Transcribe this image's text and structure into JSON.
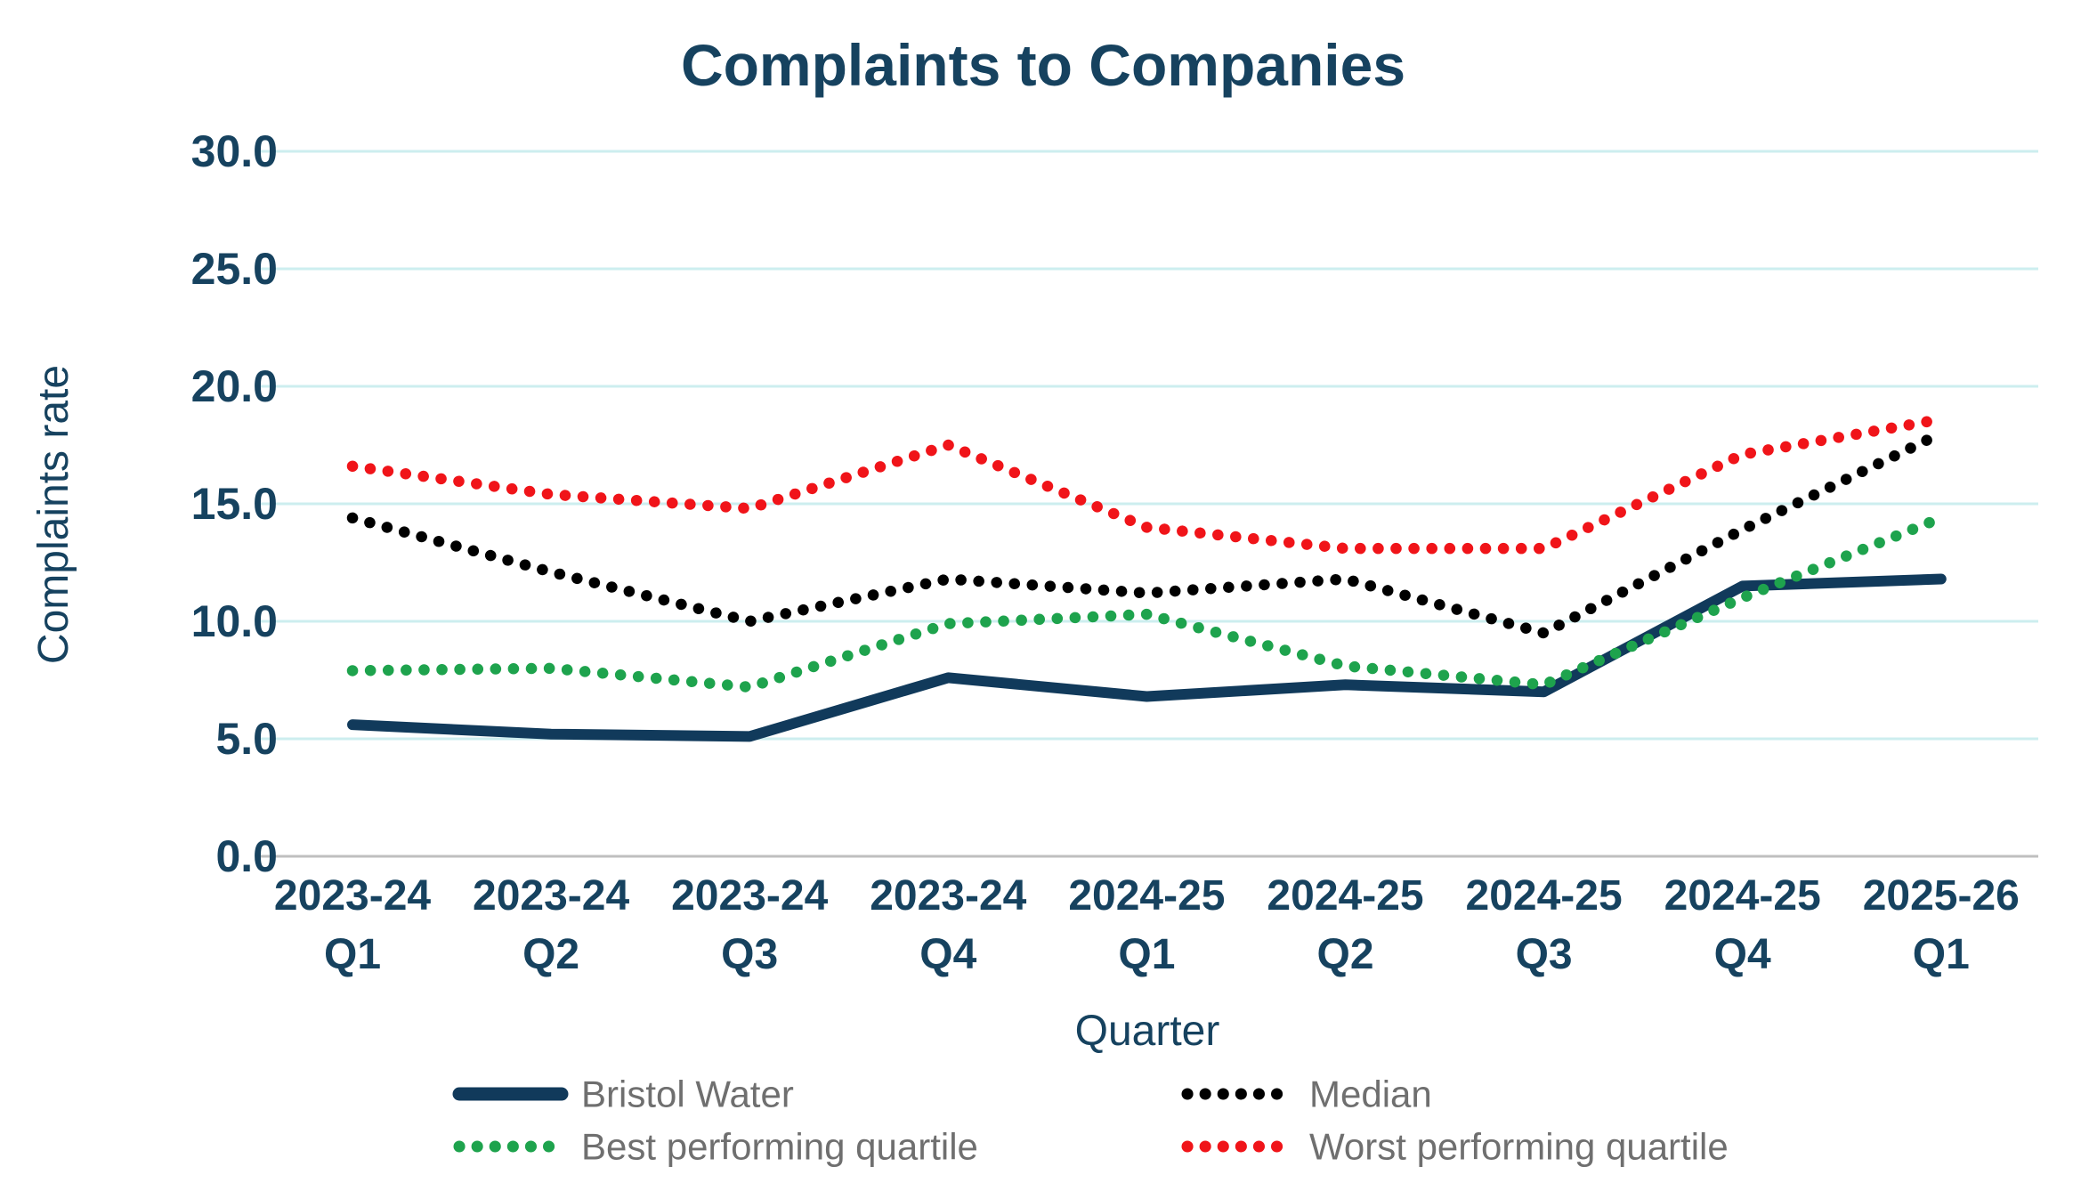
{
  "title": "Complaints to Companies",
  "colors": {
    "title_navy": "#16425F",
    "tick_navy": "#16425F",
    "line_navy": "#113A5B",
    "median_black": "#000000",
    "best_green": "#1EA34D",
    "worst_red": "#F01419",
    "gridline_cyan": "#CDEEEF",
    "zero_axis_gray": "#BFBFBF",
    "legend_text_gray": "#6F6F6F",
    "background": "#FFFFFF"
  },
  "chart_data": {
    "type": "line",
    "title": "Complaints to Companies",
    "xlabel": "Quarter",
    "ylabel": "Complaints rate",
    "ylim": [
      0,
      30
    ],
    "grid": true,
    "legend_position": "bottom",
    "ytick_labels": [
      "0.0",
      "5.0",
      "10.0",
      "15.0",
      "20.0",
      "25.0",
      "30.0"
    ],
    "categories": [
      {
        "period": "2023-24",
        "quarter": "Q1"
      },
      {
        "period": "2023-24",
        "quarter": "Q2"
      },
      {
        "period": "2023-24",
        "quarter": "Q3"
      },
      {
        "period": "2023-24",
        "quarter": "Q4"
      },
      {
        "period": "2024-25",
        "quarter": "Q1"
      },
      {
        "period": "2024-25",
        "quarter": "Q2"
      },
      {
        "period": "2024-25",
        "quarter": "Q3"
      },
      {
        "period": "2024-25",
        "quarter": "Q4"
      },
      {
        "period": "2025-26",
        "quarter": "Q1"
      }
    ],
    "series": [
      {
        "name": "Bristol Water",
        "style": "solid",
        "color": "#113A5B",
        "values": [
          5.6,
          5.2,
          5.1,
          7.6,
          6.8,
          7.3,
          7.0,
          11.5,
          11.8
        ]
      },
      {
        "name": "Median",
        "style": "dotted",
        "color": "#000000",
        "values": [
          14.4,
          12.1,
          10.0,
          11.8,
          11.2,
          11.8,
          9.5,
          13.9,
          18.0
        ]
      },
      {
        "name": "Best performing quartile",
        "style": "dotted",
        "color": "#1EA34D",
        "values": [
          7.9,
          8.0,
          7.2,
          9.9,
          10.3,
          8.1,
          7.3,
          11.0,
          14.4
        ]
      },
      {
        "name": "Worst performing quartile",
        "style": "dotted",
        "color": "#F01419",
        "values": [
          16.6,
          15.4,
          14.8,
          17.5,
          14.0,
          13.1,
          13.1,
          17.1,
          18.6
        ]
      }
    ]
  }
}
